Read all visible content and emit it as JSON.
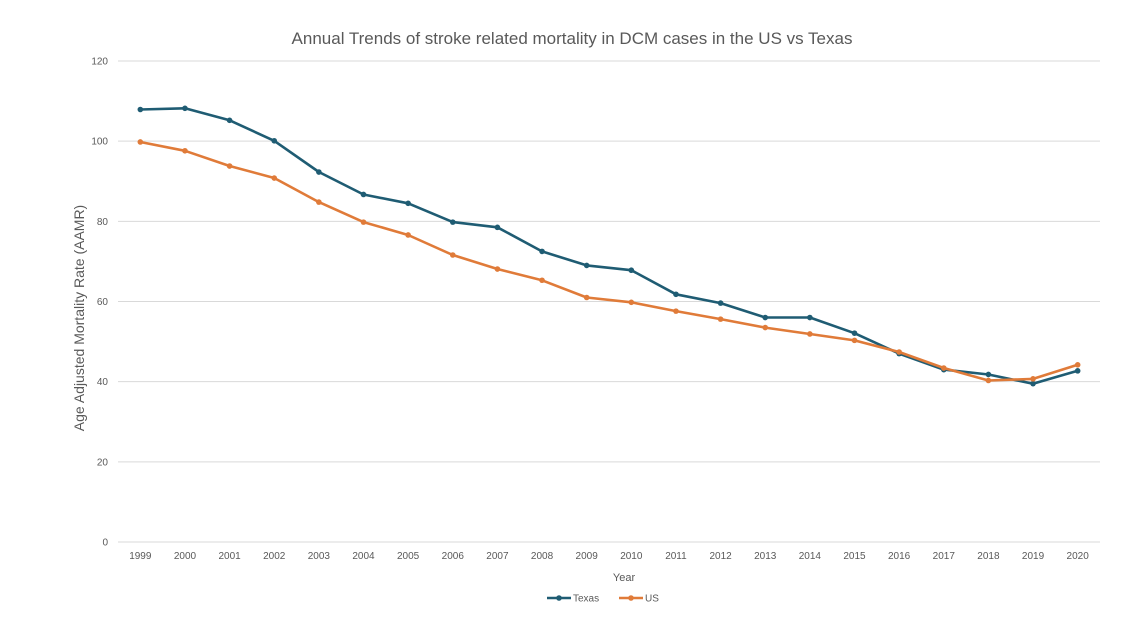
{
  "chart_data": {
    "type": "line",
    "title": "Annual Trends of stroke related mortality in DCM cases in the US vs Texas",
    "xlabel": "Year",
    "ylabel": "Age Adjusted Mortality Rate (AAMR)",
    "ylim": [
      0,
      120
    ],
    "yticks": [
      0,
      20,
      40,
      60,
      80,
      100,
      120
    ],
    "grid": true,
    "legend_position": "bottom",
    "categories": [
      "1999",
      "2000",
      "2001",
      "2002",
      "2003",
      "2004",
      "2005",
      "2006",
      "2007",
      "2008",
      "2009",
      "2010",
      "2011",
      "2012",
      "2013",
      "2014",
      "2015",
      "2016",
      "2017",
      "2018",
      "2019",
      "2020"
    ],
    "series": [
      {
        "name": "Texas",
        "color": "#1f5c73",
        "values": [
          107.9,
          108.2,
          105.2,
          100.1,
          92.3,
          86.7,
          84.5,
          79.8,
          78.5,
          72.5,
          69.0,
          67.8,
          61.8,
          59.6,
          56.0,
          56.0,
          52.1,
          47.0,
          43.0,
          41.8,
          39.5,
          42.7
        ]
      },
      {
        "name": "US",
        "color": "#e07b39",
        "values": [
          99.8,
          97.6,
          93.8,
          90.8,
          84.8,
          79.8,
          76.6,
          71.6,
          68.1,
          65.3,
          61.0,
          59.8,
          57.6,
          55.6,
          53.5,
          51.9,
          50.3,
          47.4,
          43.4,
          40.3,
          40.7,
          44.2
        ]
      }
    ]
  }
}
